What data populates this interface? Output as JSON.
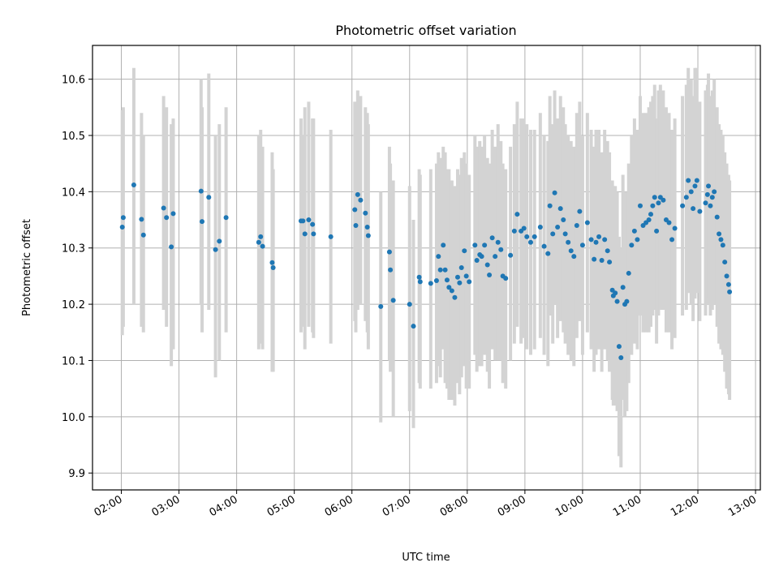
{
  "chart_data": {
    "type": "scatter",
    "title": "Photometric offset variation",
    "xlabel": "UTC time",
    "ylabel": "Photometric offset",
    "xlim": [
      "01:30",
      "13:05"
    ],
    "ylim": [
      9.87,
      10.66
    ],
    "grid": true,
    "x_ticks": [
      "02:00",
      "03:00",
      "04:00",
      "05:00",
      "06:00",
      "07:00",
      "08:00",
      "09:00",
      "10:00",
      "11:00",
      "12:00",
      "13:00"
    ],
    "y_ticks": [
      "9.9",
      "10.0",
      "10.1",
      "10.2",
      "10.3",
      "10.4",
      "10.5",
      "10.6"
    ],
    "colors": {
      "marker": "#1f77b4",
      "errorbar": "#d3d3d3",
      "grid": "#b0b0b0"
    },
    "series": [
      {
        "points": [
          [
            "02:01",
            10.337,
            10.145,
            10.545
          ],
          [
            "02:02",
            10.354,
            10.16,
            10.55
          ],
          [
            "02:13",
            10.412,
            10.2,
            10.62
          ],
          [
            "02:21",
            10.351,
            10.16,
            10.54
          ],
          [
            "02:23",
            10.323,
            10.15,
            10.5
          ],
          [
            "02:44",
            10.371,
            10.19,
            10.57
          ],
          [
            "02:47",
            10.354,
            10.16,
            10.55
          ],
          [
            "02:52",
            10.302,
            10.09,
            10.52
          ],
          [
            "02:54",
            10.361,
            10.12,
            10.53
          ],
          [
            "03:23",
            10.401,
            10.2,
            10.6
          ],
          [
            "03:24",
            10.347,
            10.15,
            10.55
          ],
          [
            "03:31",
            10.39,
            10.19,
            10.61
          ],
          [
            "03:38",
            10.297,
            10.07,
            10.5
          ],
          [
            "03:42",
            10.312,
            10.1,
            10.52
          ],
          [
            "03:49",
            10.354,
            10.15,
            10.55
          ],
          [
            "04:23",
            10.31,
            10.12,
            10.5
          ],
          [
            "04:25",
            10.32,
            10.13,
            10.51
          ],
          [
            "04:27",
            10.303,
            10.12,
            10.48
          ],
          [
            "04:37",
            10.274,
            10.08,
            10.47
          ],
          [
            "04:38",
            10.265,
            10.08,
            10.44
          ],
          [
            "05:07",
            10.348,
            10.15,
            10.53
          ],
          [
            "05:09",
            10.348,
            10.16,
            10.5
          ],
          [
            "05:11",
            10.325,
            10.12,
            10.55
          ],
          [
            "05:15",
            10.35,
            10.16,
            10.56
          ],
          [
            "05:19",
            10.342,
            10.15,
            10.53
          ],
          [
            "05:20",
            10.325,
            10.14,
            10.53
          ],
          [
            "05:38",
            10.32,
            10.13,
            10.51
          ],
          [
            "06:03",
            10.368,
            10.17,
            10.56
          ],
          [
            "06:04",
            10.34,
            10.15,
            10.53
          ],
          [
            "06:06",
            10.395,
            10.19,
            10.58
          ],
          [
            "06:09",
            10.385,
            10.2,
            10.57
          ],
          [
            "06:14",
            10.362,
            10.17,
            10.55
          ],
          [
            "06:16",
            10.337,
            10.15,
            10.54
          ],
          [
            "06:17",
            10.322,
            10.12,
            10.52
          ],
          [
            "06:30",
            10.196,
            9.99,
            10.4
          ],
          [
            "06:39",
            10.293,
            10.1,
            10.48
          ],
          [
            "06:40",
            10.261,
            10.08,
            10.45
          ],
          [
            "06:43",
            10.207,
            10.0,
            10.42
          ],
          [
            "07:00",
            10.2,
            10.01,
            10.41
          ],
          [
            "07:04",
            10.161,
            9.98,
            10.35
          ],
          [
            "07:10",
            10.248,
            10.06,
            10.44
          ],
          [
            "07:11",
            10.24,
            10.05,
            10.43
          ],
          [
            "07:22",
            10.237,
            10.05,
            10.44
          ],
          [
            "07:28",
            10.242,
            10.06,
            10.45
          ],
          [
            "07:30",
            10.285,
            10.09,
            10.47
          ],
          [
            "07:32",
            10.261,
            10.07,
            10.46
          ],
          [
            "07:35",
            10.305,
            10.12,
            10.48
          ],
          [
            "07:37",
            10.261,
            10.06,
            10.47
          ],
          [
            "07:39",
            10.243,
            10.05,
            10.44
          ],
          [
            "07:41",
            10.23,
            10.03,
            10.44
          ],
          [
            "07:44",
            10.224,
            10.03,
            10.42
          ],
          [
            "07:47",
            10.212,
            10.02,
            10.41
          ],
          [
            "07:50",
            10.248,
            10.06,
            10.44
          ],
          [
            "07:52",
            10.238,
            10.04,
            10.43
          ],
          [
            "07:54",
            10.265,
            10.07,
            10.46
          ],
          [
            "07:57",
            10.295,
            10.09,
            10.47
          ],
          [
            "07:59",
            10.25,
            10.05,
            10.45
          ],
          [
            "08:02",
            10.24,
            10.05,
            10.43
          ],
          [
            "08:08",
            10.305,
            10.11,
            10.5
          ],
          [
            "08:10",
            10.278,
            10.08,
            10.48
          ],
          [
            "08:13",
            10.288,
            10.09,
            10.49
          ],
          [
            "08:15",
            10.285,
            10.09,
            10.48
          ],
          [
            "08:18",
            10.305,
            10.11,
            10.5
          ],
          [
            "08:21",
            10.27,
            10.08,
            10.46
          ],
          [
            "08:23",
            10.252,
            10.05,
            10.45
          ],
          [
            "08:26",
            10.318,
            10.12,
            10.51
          ],
          [
            "08:29",
            10.285,
            10.1,
            10.48
          ],
          [
            "08:32",
            10.31,
            10.1,
            10.52
          ],
          [
            "08:35",
            10.297,
            10.1,
            10.49
          ],
          [
            "08:37",
            10.25,
            10.06,
            10.45
          ],
          [
            "08:40",
            10.246,
            10.05,
            10.44
          ],
          [
            "08:45",
            10.287,
            10.1,
            10.48
          ],
          [
            "08:49",
            10.33,
            10.13,
            10.52
          ],
          [
            "08:52",
            10.36,
            10.16,
            10.56
          ],
          [
            "08:56",
            10.33,
            10.13,
            10.53
          ],
          [
            "08:59",
            10.335,
            10.14,
            10.53
          ],
          [
            "09:02",
            10.32,
            10.12,
            10.52
          ],
          [
            "09:06",
            10.31,
            10.11,
            10.51
          ],
          [
            "09:10",
            10.32,
            10.12,
            10.51
          ],
          [
            "09:16",
            10.337,
            10.14,
            10.54
          ],
          [
            "09:20",
            10.303,
            10.11,
            10.5
          ],
          [
            "09:24",
            10.29,
            10.09,
            10.49
          ],
          [
            "09:26",
            10.375,
            10.18,
            10.57
          ],
          [
            "09:29",
            10.325,
            10.13,
            10.52
          ],
          [
            "09:31",
            10.398,
            10.2,
            10.58
          ],
          [
            "09:34",
            10.337,
            10.14,
            10.53
          ],
          [
            "09:37",
            10.37,
            10.17,
            10.57
          ],
          [
            "09:40",
            10.35,
            10.15,
            10.55
          ],
          [
            "09:42",
            10.325,
            10.13,
            10.52
          ],
          [
            "09:45",
            10.31,
            10.11,
            10.5
          ],
          [
            "09:48",
            10.295,
            10.1,
            10.49
          ],
          [
            "09:51",
            10.285,
            10.09,
            10.48
          ],
          [
            "09:54",
            10.34,
            10.14,
            10.54
          ],
          [
            "09:57",
            10.365,
            10.17,
            10.56
          ],
          [
            "10:00",
            10.305,
            10.11,
            10.5
          ],
          [
            "10:05",
            10.345,
            10.15,
            10.54
          ],
          [
            "10:09",
            10.315,
            10.12,
            10.51
          ],
          [
            "10:12",
            10.28,
            10.08,
            10.48
          ],
          [
            "10:14",
            10.31,
            10.11,
            10.51
          ],
          [
            "10:17",
            10.32,
            10.12,
            10.51
          ],
          [
            "10:20",
            10.278,
            10.08,
            10.47
          ],
          [
            "10:23",
            10.315,
            10.12,
            10.51
          ],
          [
            "10:26",
            10.295,
            10.1,
            10.49
          ],
          [
            "10:28",
            10.275,
            10.08,
            10.47
          ],
          [
            "10:31",
            10.225,
            10.03,
            10.42
          ],
          [
            "10:32",
            10.215,
            10.02,
            10.41
          ],
          [
            "10:34",
            10.22,
            10.02,
            10.41
          ],
          [
            "10:36",
            10.205,
            10.01,
            10.4
          ],
          [
            "10:38",
            10.125,
            9.93,
            10.32
          ],
          [
            "10:40",
            10.105,
            9.91,
            10.3
          ],
          [
            "10:42",
            10.23,
            10.03,
            10.43
          ],
          [
            "10:44",
            10.2,
            10.0,
            10.4
          ],
          [
            "10:46",
            10.205,
            10.01,
            10.4
          ],
          [
            "10:48",
            10.255,
            10.06,
            10.45
          ],
          [
            "10:51",
            10.305,
            10.11,
            10.5
          ],
          [
            "10:54",
            10.33,
            10.13,
            10.53
          ],
          [
            "10:57",
            10.315,
            10.12,
            10.51
          ],
          [
            "11:00",
            10.375,
            10.18,
            10.57
          ],
          [
            "11:03",
            10.34,
            10.15,
            10.54
          ],
          [
            "11:06",
            10.345,
            10.15,
            10.54
          ],
          [
            "11:09",
            10.35,
            10.15,
            10.55
          ],
          [
            "11:11",
            10.36,
            10.16,
            10.56
          ],
          [
            "11:13",
            10.375,
            10.18,
            10.57
          ],
          [
            "11:15",
            10.39,
            10.19,
            10.59
          ],
          [
            "11:17",
            10.33,
            10.13,
            10.53
          ],
          [
            "11:19",
            10.38,
            10.18,
            10.58
          ],
          [
            "11:21",
            10.39,
            10.19,
            10.59
          ],
          [
            "11:24",
            10.385,
            10.19,
            10.58
          ],
          [
            "11:27",
            10.35,
            10.15,
            10.55
          ],
          [
            "11:30",
            10.345,
            10.15,
            10.54
          ],
          [
            "11:33",
            10.315,
            10.12,
            10.51
          ],
          [
            "11:36",
            10.335,
            10.14,
            10.53
          ],
          [
            "11:44",
            10.375,
            10.18,
            10.57
          ],
          [
            "11:48",
            10.39,
            10.19,
            10.59
          ],
          [
            "11:50",
            10.42,
            10.22,
            10.62
          ],
          [
            "11:53",
            10.4,
            10.2,
            10.6
          ],
          [
            "11:55",
            10.37,
            10.17,
            10.57
          ],
          [
            "11:57",
            10.41,
            10.21,
            10.62
          ],
          [
            "11:59",
            10.42,
            10.22,
            10.62
          ],
          [
            "12:02",
            10.365,
            10.17,
            10.56
          ],
          [
            "12:08",
            10.38,
            10.18,
            10.58
          ],
          [
            "12:10",
            10.395,
            10.2,
            10.59
          ],
          [
            "12:11",
            10.41,
            10.21,
            10.61
          ],
          [
            "12:13",
            10.375,
            10.18,
            10.57
          ],
          [
            "12:15",
            10.39,
            10.19,
            10.58
          ],
          [
            "12:17",
            10.4,
            10.2,
            10.6
          ],
          [
            "12:20",
            10.355,
            10.16,
            10.55
          ],
          [
            "12:22",
            10.325,
            10.13,
            10.52
          ],
          [
            "12:24",
            10.315,
            10.12,
            10.51
          ],
          [
            "12:26",
            10.305,
            10.11,
            10.5
          ],
          [
            "12:28",
            10.275,
            10.08,
            10.47
          ],
          [
            "12:30",
            10.25,
            10.05,
            10.45
          ],
          [
            "12:32",
            10.235,
            10.04,
            10.43
          ],
          [
            "12:33",
            10.222,
            10.03,
            10.42
          ]
        ]
      }
    ]
  }
}
